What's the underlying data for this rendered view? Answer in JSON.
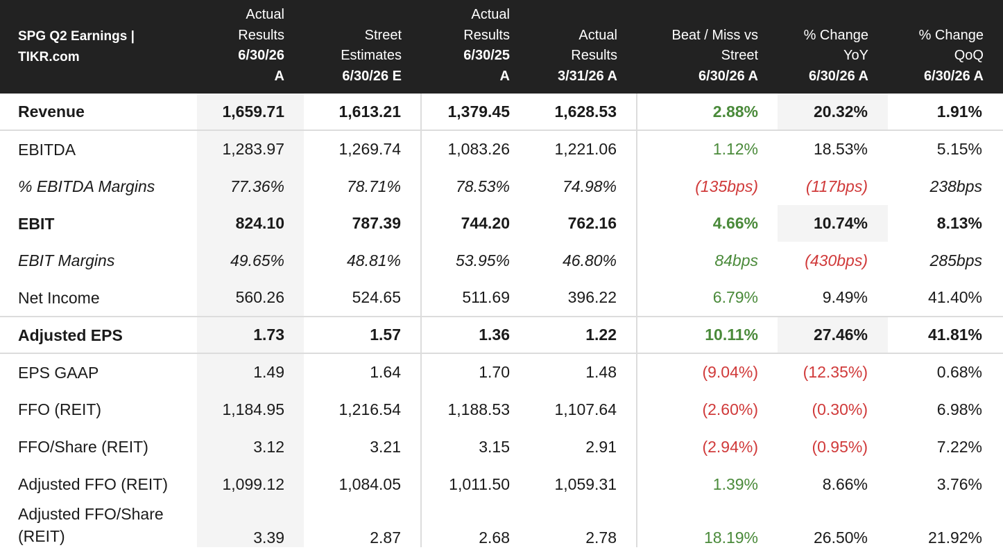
{
  "chart_data": {
    "type": "table",
    "title": "SPG Q2 Earnings | TIKR.com",
    "headers": [
      {
        "lines": [
          "Actual",
          "Results"
        ],
        "bold": [
          "6/30/26",
          "A"
        ]
      },
      {
        "lines": [
          "Street",
          "Estimates"
        ],
        "bold": [
          "6/30/26 E"
        ]
      },
      {
        "lines": [
          "Actual",
          "Results"
        ],
        "bold": [
          "6/30/25",
          "A"
        ]
      },
      {
        "lines": [
          "Actual",
          "Results"
        ],
        "bold": [
          "3/31/26 A"
        ]
      },
      {
        "lines": [
          "Beat / Miss vs",
          "Street"
        ],
        "bold": [
          "6/30/26 A"
        ]
      },
      {
        "lines": [
          "% Change",
          "YoY"
        ],
        "bold": [
          "6/30/26 A"
        ]
      },
      {
        "lines": [
          "% Change",
          "QoQ"
        ],
        "bold": [
          "6/30/26 A"
        ]
      }
    ],
    "rows": [
      {
        "label": "Revenue",
        "values": [
          "1,659.71",
          "1,613.21",
          "1,379.45",
          "1,628.53"
        ],
        "beat": "2.88%",
        "yoy": "20.32%",
        "qoq": "1.91%",
        "tone": [
          "pos",
          "neu",
          "neu"
        ]
      },
      {
        "label": "EBITDA",
        "values": [
          "1,283.97",
          "1,269.74",
          "1,083.26",
          "1,221.06"
        ],
        "beat": "1.12%",
        "yoy": "18.53%",
        "qoq": "5.15%",
        "tone": [
          "pos",
          "neu",
          "neu"
        ]
      },
      {
        "label": "% EBITDA Margins",
        "values": [
          "77.36%",
          "78.71%",
          "78.53%",
          "74.98%"
        ],
        "beat": "(135bps)",
        "yoy": "(117bps)",
        "qoq": "238bps",
        "tone": [
          "neg",
          "neg",
          "neu"
        ]
      },
      {
        "label": "EBIT",
        "values": [
          "824.10",
          "787.39",
          "744.20",
          "762.16"
        ],
        "beat": "4.66%",
        "yoy": "10.74%",
        "qoq": "8.13%",
        "tone": [
          "pos",
          "neu",
          "neu"
        ]
      },
      {
        "label": "EBIT Margins",
        "values": [
          "49.65%",
          "48.81%",
          "53.95%",
          "46.80%"
        ],
        "beat": "84bps",
        "yoy": "(430bps)",
        "qoq": "285bps",
        "tone": [
          "pos",
          "neg",
          "neu"
        ]
      },
      {
        "label": "Net Income",
        "values": [
          "560.26",
          "524.65",
          "511.69",
          "396.22"
        ],
        "beat": "6.79%",
        "yoy": "9.49%",
        "qoq": "41.40%",
        "tone": [
          "pos",
          "neu",
          "neu"
        ]
      },
      {
        "label": "Adjusted EPS",
        "values": [
          "1.73",
          "1.57",
          "1.36",
          "1.22"
        ],
        "beat": "10.11%",
        "yoy": "27.46%",
        "qoq": "41.81%",
        "tone": [
          "pos",
          "neu",
          "neu"
        ]
      },
      {
        "label": "EPS GAAP",
        "values": [
          "1.49",
          "1.64",
          "1.70",
          "1.48"
        ],
        "beat": "(9.04%)",
        "yoy": "(12.35%)",
        "qoq": "0.68%",
        "tone": [
          "neg",
          "neg",
          "neu"
        ]
      },
      {
        "label": "FFO (REIT)",
        "values": [
          "1,184.95",
          "1,216.54",
          "1,188.53",
          "1,107.64"
        ],
        "beat": "(2.60%)",
        "yoy": "(0.30%)",
        "qoq": "6.98%",
        "tone": [
          "neg",
          "neg",
          "neu"
        ]
      },
      {
        "label": "FFO/Share (REIT)",
        "values": [
          "3.12",
          "3.21",
          "3.15",
          "2.91"
        ],
        "beat": "(2.94%)",
        "yoy": "(0.95%)",
        "qoq": "7.22%",
        "tone": [
          "neg",
          "neg",
          "neu"
        ]
      },
      {
        "label": "Adjusted FFO (REIT)",
        "values": [
          "1,099.12",
          "1,084.05",
          "1,011.50",
          "1,059.31"
        ],
        "beat": "1.39%",
        "yoy": "8.66%",
        "qoq": "3.76%",
        "tone": [
          "pos",
          "neu",
          "neu"
        ]
      },
      {
        "label": "Adjusted FFO/Share (REIT)",
        "values": [
          "3.39",
          "2.87",
          "2.68",
          "2.78"
        ],
        "beat": "18.19%",
        "yoy": "26.50%",
        "qoq": "21.92%",
        "tone": [
          "pos",
          "neu",
          "neu"
        ]
      }
    ]
  },
  "colors": {
    "header_bg": "#222222",
    "positive": "#4a8a3a",
    "negative": "#d03a3a",
    "shade": "#f4f4f4"
  }
}
